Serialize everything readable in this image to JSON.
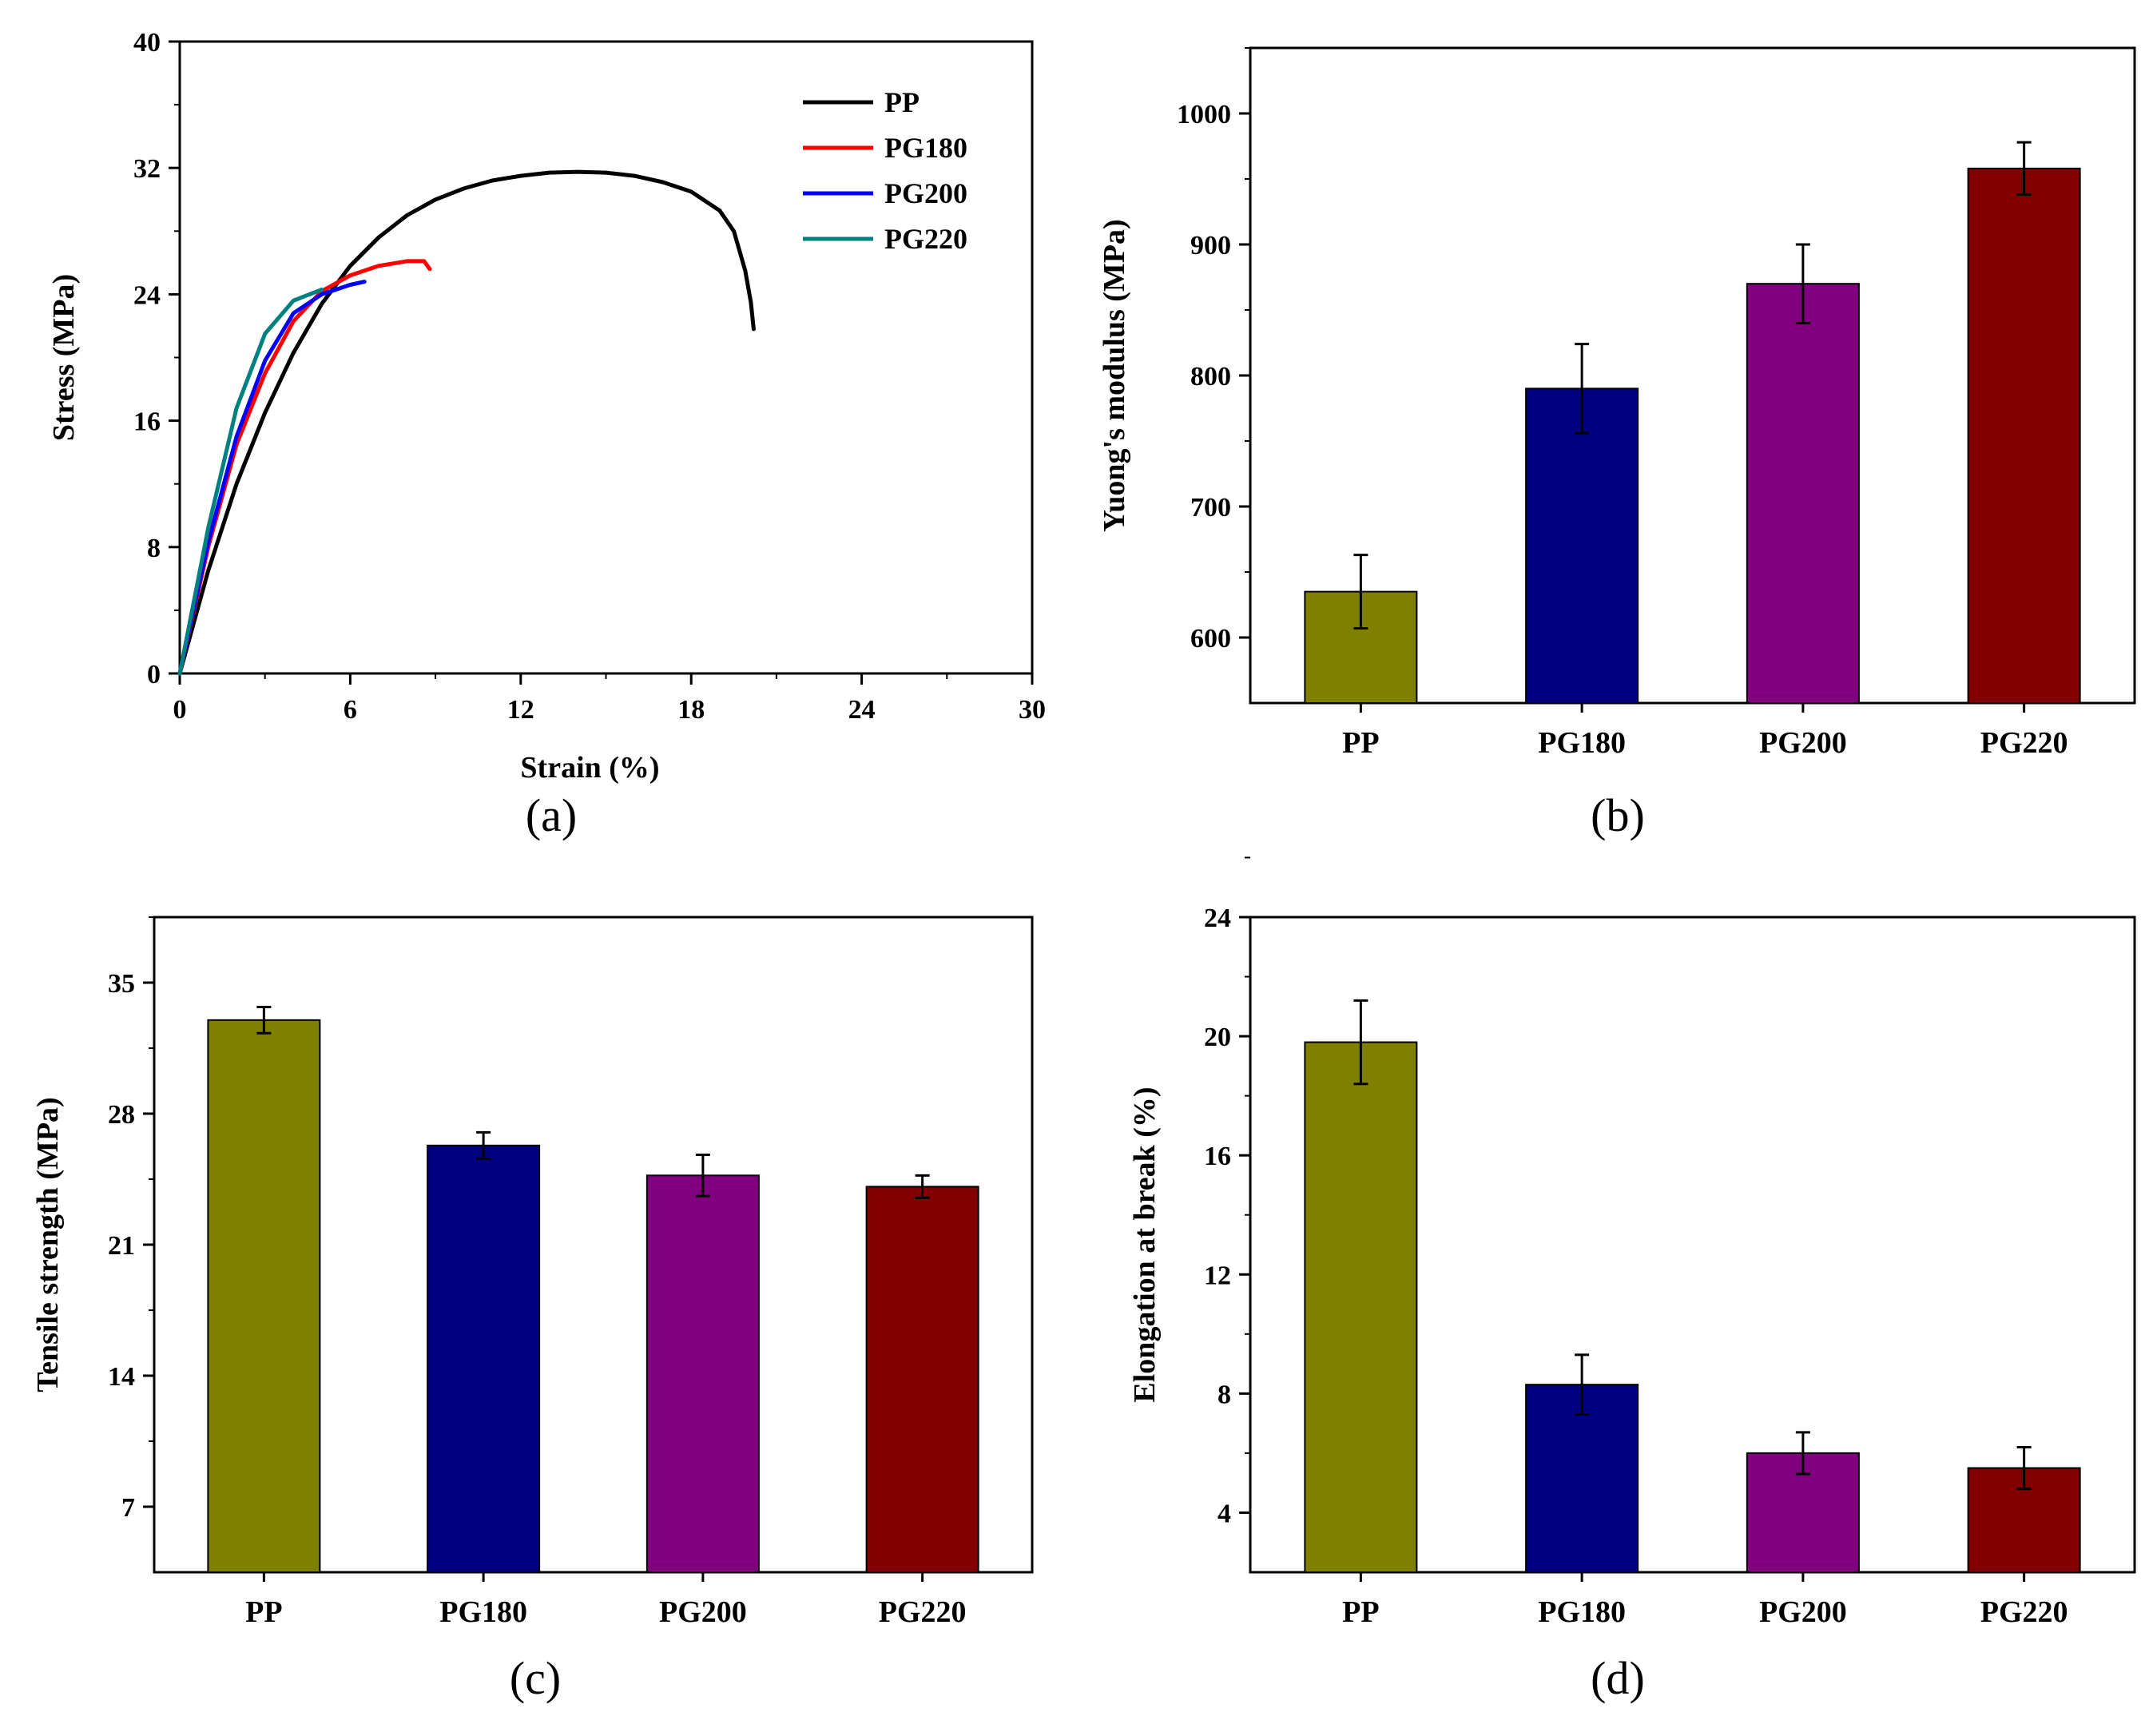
{
  "chart_data": [
    {
      "panel": "a",
      "type": "line",
      "caption": "(a)",
      "xlabel": "Strain (%)",
      "ylabel": "Stress (MPa)",
      "xlim": [
        0,
        30
      ],
      "ylim": [
        0,
        40
      ],
      "xticks": [
        "0",
        "6",
        "12",
        "18",
        "24",
        "30"
      ],
      "yticks": [
        "0",
        "8",
        "16",
        "24",
        "32",
        "40"
      ],
      "legend_position": "top-right",
      "series": [
        {
          "name": "PP",
          "color": "#000000",
          "x": [
            0,
            1,
            2,
            3,
            4,
            5,
            6,
            7,
            8,
            9,
            10,
            11,
            12,
            13,
            14,
            15,
            16,
            17,
            18,
            19,
            19.5,
            19.9,
            20.1,
            20.2
          ],
          "y": [
            0,
            6.5,
            12.0,
            16.5,
            20.3,
            23.4,
            25.8,
            27.6,
            29.0,
            30.0,
            30.7,
            31.2,
            31.5,
            31.7,
            31.75,
            31.7,
            31.5,
            31.1,
            30.5,
            29.3,
            28.0,
            25.5,
            23.5,
            21.8
          ]
        },
        {
          "name": "PG180",
          "color": "#ff0000",
          "x": [
            0,
            1,
            2,
            3,
            4,
            5,
            6,
            7,
            8,
            8.6,
            8.8
          ],
          "y": [
            0,
            8.0,
            14.5,
            19.0,
            22.3,
            24.2,
            25.2,
            25.8,
            26.1,
            26.1,
            25.6
          ]
        },
        {
          "name": "PG200",
          "color": "#0000ff",
          "x": [
            0,
            1,
            2,
            3,
            4,
            5,
            6,
            6.5
          ],
          "y": [
            0,
            8.3,
            15.0,
            19.8,
            22.8,
            24.0,
            24.6,
            24.8
          ]
        },
        {
          "name": "PG220",
          "color": "#008080",
          "x": [
            0,
            1,
            2,
            3,
            4,
            5
          ],
          "y": [
            0,
            9.2,
            16.8,
            21.5,
            23.6,
            24.3
          ]
        }
      ]
    },
    {
      "panel": "b",
      "type": "bar",
      "caption": "(b)",
      "xlabel": "",
      "ylabel": "Yuong's modulus (MPa)",
      "ylim": [
        550,
        1050
      ],
      "yticks": [
        "600",
        "700",
        "800",
        "900",
        "1000"
      ],
      "categories": [
        "PP",
        "PG180",
        "PG200",
        "PG220"
      ],
      "values": [
        635,
        790,
        870,
        958
      ],
      "errors": [
        28,
        34,
        30,
        20
      ],
      "colors": [
        "#808000",
        "#000080",
        "#800080",
        "#800000"
      ]
    },
    {
      "panel": "c",
      "type": "bar",
      "caption": "(c)",
      "xlabel": "",
      "ylabel": "Tensile strength (MPa)",
      "ylim": [
        3.5,
        38.5
      ],
      "yticks": [
        "7",
        "14",
        "21",
        "28",
        "35"
      ],
      "categories": [
        "PP",
        "PG180",
        "PG200",
        "PG220"
      ],
      "values": [
        33.0,
        26.3,
        24.7,
        24.1
      ],
      "errors": [
        0.7,
        0.7,
        1.1,
        0.6
      ],
      "colors": [
        "#808000",
        "#000080",
        "#800080",
        "#800000"
      ]
    },
    {
      "panel": "d",
      "type": "bar",
      "caption": "(d)",
      "xlabel": "",
      "ylabel": "Elongation at break (%)",
      "ylim": [
        2,
        24
      ],
      "yticks": [
        "4",
        "8",
        "12",
        "16",
        "20",
        "24"
      ],
      "categories": [
        "PP",
        "PG180",
        "PG200",
        "PG220"
      ],
      "values": [
        19.8,
        8.3,
        6.0,
        5.5
      ],
      "errors": [
        1.4,
        1.0,
        0.7,
        0.7
      ],
      "colors": [
        "#808000",
        "#000080",
        "#800080",
        "#800000"
      ]
    }
  ]
}
